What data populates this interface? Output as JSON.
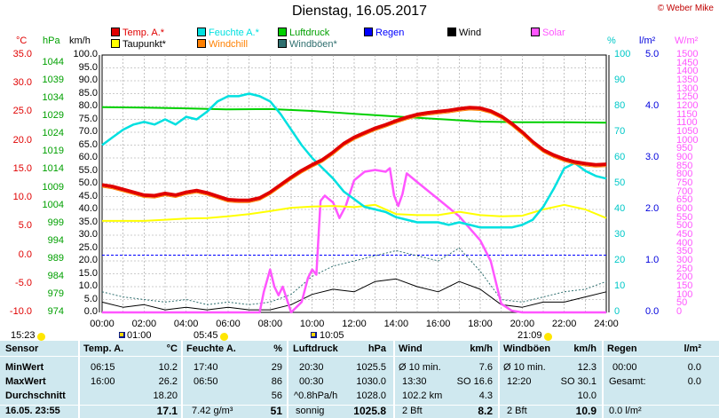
{
  "title": "Dienstag, 16.05.2017",
  "credit": "© Weber Mike",
  "legend": [
    {
      "label": "Temp. A.*",
      "color": "#e00000"
    },
    {
      "label": "Feuchte A.*",
      "color": "#00e0e0"
    },
    {
      "label": "Luftdruck",
      "color": "#00d000"
    },
    {
      "label": "Regen",
      "color": "#0000ff"
    },
    {
      "label": "Wind",
      "color": "#000000"
    },
    {
      "label": "Solar",
      "color": "#ff55ff"
    },
    {
      "label": "Taupunkt*",
      "color": "#ffff00"
    },
    {
      "label": "Windchill",
      "color": "#ff8000"
    },
    {
      "label": "Windböen*",
      "color": "#2f6f6f"
    }
  ],
  "axis_units": {
    "temp": "°C",
    "pressure": "hPa",
    "wind": "km/h",
    "humidity": "%",
    "rain": "l/m²",
    "solar": "W/m²"
  },
  "axis_labels": {
    "temp": [
      "35.0",
      "30.0",
      "25.0",
      "20.0",
      "15.0",
      "10.0",
      "5.0",
      "0.0",
      "-5.0",
      "-10.0"
    ],
    "pressure": [
      "1044",
      "1039",
      "1034",
      "1029",
      "1024",
      "1019",
      "1014",
      "1009",
      "1004",
      "999",
      "994",
      "989",
      "984",
      "979",
      "974"
    ],
    "wind": [
      "100.0",
      "95.0",
      "90.0",
      "85.0",
      "80.0",
      "75.0",
      "70.0",
      "65.0",
      "60.0",
      "55.0",
      "50.0",
      "45.0",
      "40.0",
      "35.0",
      "30.0",
      "25.0",
      "20.0",
      "15.0",
      "10.0",
      "5.0",
      "0.0"
    ],
    "humidity": [
      "100",
      "90",
      "80",
      "70",
      "60",
      "50",
      "40",
      "30",
      "20",
      "10",
      "0"
    ],
    "rain": [
      "5.0",
      "4.0",
      "3.0",
      "2.0",
      "1.0",
      "0.0"
    ],
    "solar": [
      "1500",
      "1450",
      "1400",
      "1350",
      "1300",
      "1250",
      "1200",
      "1150",
      "1100",
      "1050",
      "1000",
      "950",
      "900",
      "850",
      "800",
      "750",
      "700",
      "650",
      "600",
      "550",
      "500",
      "450",
      "400",
      "350",
      "300",
      "250",
      "200",
      "150",
      "100",
      "50",
      "0"
    ],
    "time": [
      "00:00",
      "02:00",
      "04:00",
      "06:00",
      "08:00",
      "10:00",
      "12:00",
      "14:00",
      "16:00",
      "18:00",
      "20:00",
      "22:00",
      "24:00"
    ]
  },
  "astro": {
    "moonrise": "01:00",
    "sunrise": "05:45",
    "moonset": "10:05",
    "sunset": "21:09",
    "left_time": "15:23"
  },
  "chart_data": {
    "type": "line",
    "x_unit": "hours",
    "xlim": [
      0,
      24
    ],
    "series": [
      {
        "name": "Temp. A.*",
        "unit": "°C",
        "color": "#e00000",
        "x": [
          0,
          0.5,
          1,
          1.5,
          2,
          2.5,
          3,
          3.5,
          4,
          4.5,
          5,
          5.5,
          6,
          6.5,
          7,
          7.5,
          8,
          8.5,
          9,
          9.5,
          10,
          10.5,
          11,
          11.5,
          12,
          12.5,
          13,
          13.5,
          14,
          14.5,
          15,
          15.5,
          16,
          16.5,
          17,
          17.5,
          18,
          18.5,
          19,
          19.5,
          20,
          20.5,
          21,
          21.5,
          22,
          22.5,
          23,
          23.5,
          24
        ],
        "y": [
          12.3,
          12.0,
          11.5,
          11.0,
          10.5,
          10.4,
          10.8,
          10.5,
          11.0,
          11.3,
          10.9,
          10.3,
          9.7,
          9.6,
          9.6,
          10.0,
          11.0,
          12.3,
          13.6,
          14.8,
          15.8,
          16.7,
          18.0,
          19.5,
          20.6,
          21.4,
          22.2,
          22.8,
          23.5,
          24.1,
          24.6,
          24.9,
          25.1,
          25.3,
          25.6,
          25.8,
          25.7,
          25.2,
          24.3,
          23.0,
          21.5,
          19.8,
          18.4,
          17.5,
          16.8,
          16.3,
          16.0,
          15.8,
          15.9
        ]
      },
      {
        "name": "Feuchte A.*",
        "unit": "%",
        "color": "#00e0e0",
        "x": [
          0,
          0.5,
          1,
          1.5,
          2,
          2.5,
          3,
          3.5,
          4,
          4.5,
          5,
          5.5,
          6,
          6.5,
          7,
          7.5,
          8,
          8.5,
          9,
          9.5,
          10,
          10.5,
          11,
          11.5,
          12,
          12.5,
          13,
          13.5,
          14,
          14.5,
          15,
          15.5,
          16,
          16.5,
          17,
          17.5,
          18,
          18.5,
          19,
          19.5,
          20,
          20.5,
          21,
          21.5,
          22,
          22.5,
          23,
          23.5,
          24
        ],
        "y": [
          65,
          68,
          71,
          73,
          74,
          73,
          75,
          73,
          76,
          75,
          78,
          82,
          84,
          84,
          85,
          84,
          82,
          77,
          71,
          65,
          60,
          56,
          52,
          47,
          44,
          41,
          40,
          39,
          37,
          36,
          35,
          35,
          35,
          34,
          35,
          34,
          33,
          33,
          33,
          33,
          34,
          36,
          41,
          48,
          56,
          58,
          55,
          53,
          52
        ]
      },
      {
        "name": "Taupunkt*",
        "unit": "°C",
        "color": "#ffff00",
        "x": [
          0,
          1,
          2,
          3,
          4,
          5,
          6,
          7,
          8,
          9,
          10,
          11,
          12,
          13,
          14,
          15,
          16,
          17,
          18,
          19,
          20,
          21,
          22,
          23,
          24
        ],
        "y": [
          6.0,
          6.0,
          6.0,
          6.2,
          6.4,
          6.5,
          6.8,
          7.2,
          7.7,
          8.3,
          8.5,
          8.6,
          8.4,
          8.8,
          7.2,
          7.0,
          7.0,
          7.6,
          7.0,
          6.8,
          6.9,
          8.0,
          8.8,
          8.0,
          6.5
        ]
      },
      {
        "name": "Luftdruck",
        "unit": "hPa",
        "color": "#00d000",
        "x": [
          0,
          2,
          4,
          6,
          8,
          10,
          12,
          14,
          16,
          18,
          20,
          22,
          24
        ],
        "y": [
          1029.8,
          1029.7,
          1029.5,
          1029.2,
          1029.3,
          1028.8,
          1028.0,
          1027.3,
          1026.6,
          1025.9,
          1025.7,
          1025.7,
          1025.6
        ]
      },
      {
        "name": "Solar",
        "unit": "W/m²",
        "color": "#ff55ff",
        "x": [
          0,
          6.5,
          7.5,
          7.7,
          8.0,
          8.2,
          8.4,
          8.6,
          9.0,
          9.5,
          9.8,
          10.0,
          10.2,
          10.4,
          10.6,
          11.0,
          11.3,
          11.6,
          12.0,
          12.5,
          13.0,
          13.5,
          13.7,
          13.9,
          14.1,
          14.3,
          14.5,
          15.0,
          16.0,
          17.0,
          18.0,
          18.5,
          18.8,
          19.0,
          19.5,
          20.0,
          24
        ],
        "y": [
          0,
          0,
          0,
          120,
          250,
          150,
          100,
          150,
          0,
          60,
          200,
          250,
          220,
          650,
          680,
          640,
          550,
          620,
          770,
          820,
          830,
          820,
          840,
          680,
          620,
          690,
          810,
          760,
          660,
          560,
          420,
          300,
          150,
          50,
          10,
          0,
          0
        ]
      },
      {
        "name": "Wind",
        "unit": "km/h",
        "color": "#000000",
        "x": [
          0,
          1,
          2,
          3,
          4,
          5,
          6,
          7,
          8,
          9,
          10,
          11,
          12,
          13,
          14,
          15,
          16,
          17,
          18,
          19,
          20,
          21,
          22,
          23,
          24
        ],
        "y": [
          4,
          2,
          3,
          1,
          2,
          1,
          2,
          1,
          1,
          3,
          7,
          9,
          8,
          12,
          13,
          10,
          8,
          12,
          9,
          3,
          2,
          4,
          4,
          6,
          8
        ]
      },
      {
        "name": "Windböen*",
        "unit": "km/h",
        "color": "#2f6f6f",
        "x": [
          0,
          1,
          2,
          3,
          4,
          5,
          6,
          7,
          8,
          9,
          10,
          11,
          12,
          13,
          14,
          15,
          16,
          17,
          18,
          19,
          20,
          21,
          22,
          23,
          24
        ],
        "y": [
          8,
          6,
          5,
          4,
          5,
          3,
          4,
          3,
          4,
          7,
          14,
          18,
          20,
          22,
          24,
          22,
          20,
          25,
          16,
          5,
          4,
          6,
          8,
          9,
          12
        ]
      }
    ]
  },
  "stats": {
    "headers": [
      "Sensor",
      "Temp. A.",
      "°C",
      "Feuchte A.",
      "%",
      "Luftdruck",
      "hPa",
      "Wind",
      "km/h",
      "Windböen",
      "km/h",
      "Regen",
      "l/m²"
    ],
    "row_labels": [
      "MinWert",
      "MaxWert",
      "Durchschnitt"
    ],
    "footer_label": "16.05. 23:55",
    "temp": {
      "min_time": "06:15",
      "min": "10.2",
      "max_time": "16:00",
      "max": "26.2",
      "avg": "18.20",
      "current": "17.1"
    },
    "hum": {
      "min_time": "17:40",
      "min": "29",
      "max_time": "06:50",
      "max": "86",
      "avg": "56",
      "cur_sub": "7.42 g/m³",
      "current": "51"
    },
    "press": {
      "min_time": "20:30",
      "min": "1025.5",
      "max_time": "00:30",
      "max": "1030.0",
      "avg_sub": "^0.8hPa/h",
      "avg": "1028.0",
      "cur_sub": "sonnig",
      "current": "1025.8"
    },
    "wind": {
      "min_sub": "Ø 10 min.",
      "min": "7.6",
      "max_time": "13:30",
      "max_dir": "SO 16.6",
      "avg_sub": "102.2 km",
      "avg": "4.3",
      "cur_sub": "2 Bft",
      "current": "8.2"
    },
    "gust": {
      "min_sub": "Ø 10 min.",
      "min": "12.3",
      "max_time": "12:20",
      "max_dir": "SO 30.1",
      "avg": "10.0",
      "cur_sub": "2 Bft",
      "current": "10.9"
    },
    "rain": {
      "max_time": "00:00",
      "max": "0.0",
      "avg_sub": "Gesamt:",
      "avg": "0.0",
      "current": "0.0 l/m²"
    }
  }
}
